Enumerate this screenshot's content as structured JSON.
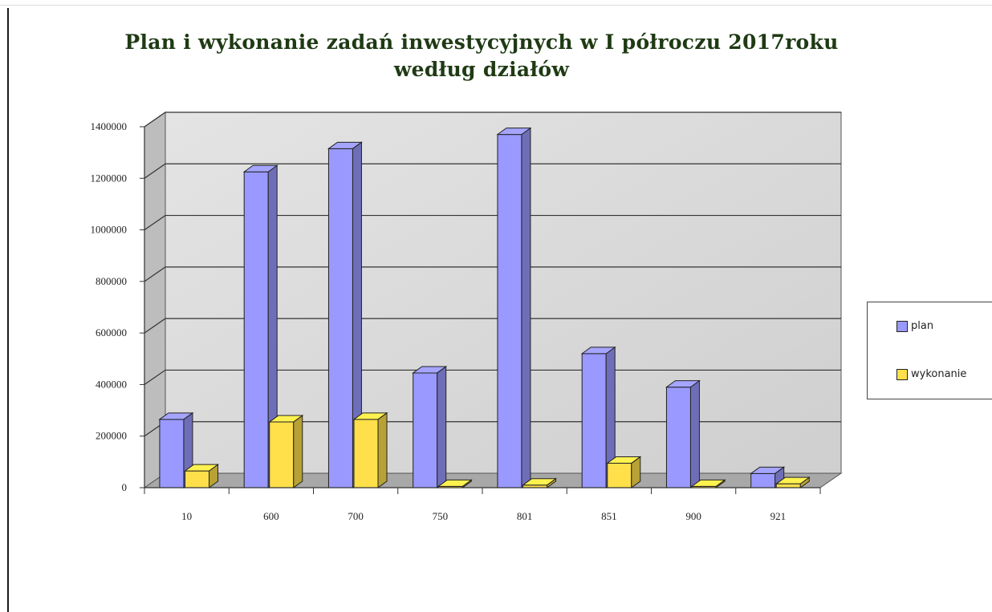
{
  "chart_data": {
    "type": "bar",
    "title": "Plan i wykonanie zadań inwestycyjnych w I półroczu 2017roku według działów",
    "title_lines": [
      "Plan i wykonanie zadań inwestycyjnych w I półroczu 2017roku",
      "według działów"
    ],
    "xlabel": "",
    "ylabel": "",
    "categories": [
      "10",
      "600",
      "700",
      "750",
      "801",
      "851",
      "900",
      "921"
    ],
    "series": [
      {
        "name": "plan",
        "color": "#9999ff",
        "values": [
          265000,
          1225000,
          1315000,
          445000,
          1370000,
          520000,
          390000,
          55000
        ]
      },
      {
        "name": "wykonanie",
        "color": "#ffe04a",
        "values": [
          65000,
          255000,
          265000,
          5000,
          10000,
          95000,
          5000,
          15000
        ]
      }
    ],
    "ylim": [
      0,
      1400000
    ],
    "yticks": [
      "0",
      "200000",
      "400000",
      "600000",
      "800000",
      "1000000",
      "1200000",
      "1400000"
    ],
    "grid": true,
    "legend_position": "right",
    "style": "3d-column"
  }
}
